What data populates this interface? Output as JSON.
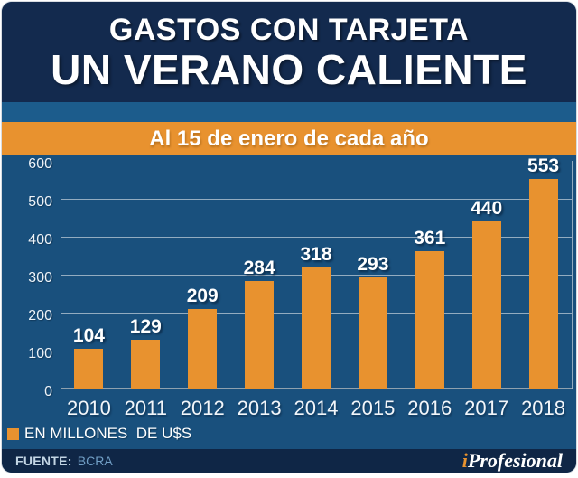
{
  "header": {
    "title_line1": "GASTOS CON TARJETA",
    "title_line2": "UN VERANO CALIENTE",
    "banner": "Al 15 de enero de cada año"
  },
  "chart_data": {
    "type": "bar",
    "title": "GASTOS CON TARJETA — UN VERANO CALIENTE",
    "subtitle": "Al 15 de enero de cada año",
    "categories": [
      "2010",
      "2011",
      "2012",
      "2013",
      "2014",
      "2015",
      "2016",
      "2017",
      "2018"
    ],
    "values": [
      104,
      129,
      209,
      284,
      318,
      293,
      361,
      440,
      553
    ],
    "xlabel": "",
    "ylabel": "",
    "ylim": [
      0,
      600
    ],
    "yticks": [
      0,
      100,
      200,
      300,
      400,
      500,
      600
    ],
    "grid": true,
    "legend": "EN MILLONES  DE U$S",
    "legend_position": "bottom-left",
    "bar_color": "#E8922F"
  },
  "legend": {
    "label": "EN MILLONES  DE U$S"
  },
  "footer": {
    "source_label": "FUENTE:",
    "source_value": "BCRA",
    "brand_prefix": "i",
    "brand_name": "Profesional"
  },
  "colors": {
    "header_bg": "#132A4E",
    "strip_bg": "#1C5C8C",
    "banner_bg": "#E8922F",
    "chart_bg": "#19507D",
    "footer_bg": "#0F2646",
    "bar": "#E8922F",
    "gridline": "#A9BCCB",
    "baseline": "#8FA1AE",
    "brand_accent": "#E8922F"
  }
}
